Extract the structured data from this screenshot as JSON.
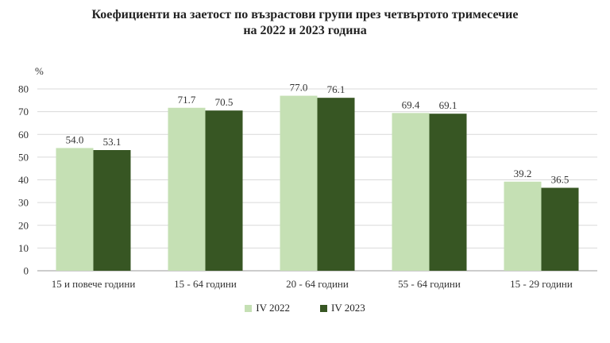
{
  "chart_data": {
    "type": "bar",
    "title_line1": "Коефициенти на заетост по възрастови групи през четвъртото тримесечие",
    "title_line2": "на 2022 и 2023 година",
    "ylabel": "%",
    "ylim": [
      0,
      80
    ],
    "yticks": [
      0,
      10,
      20,
      30,
      40,
      50,
      60,
      70,
      80
    ],
    "grid": true,
    "legend_position": "bottom",
    "categories": [
      "15 и повече години",
      "15 - 64 години",
      "20 - 64 години",
      "55 - 64 години",
      "15 - 29 години"
    ],
    "series": [
      {
        "name": "IV 2022",
        "color": "#c5e0b4",
        "values": [
          54.0,
          71.7,
          77.0,
          69.4,
          39.2
        ]
      },
      {
        "name": "IV 2023",
        "color": "#375623",
        "values": [
          53.1,
          70.5,
          76.1,
          69.1,
          36.5
        ]
      }
    ]
  }
}
